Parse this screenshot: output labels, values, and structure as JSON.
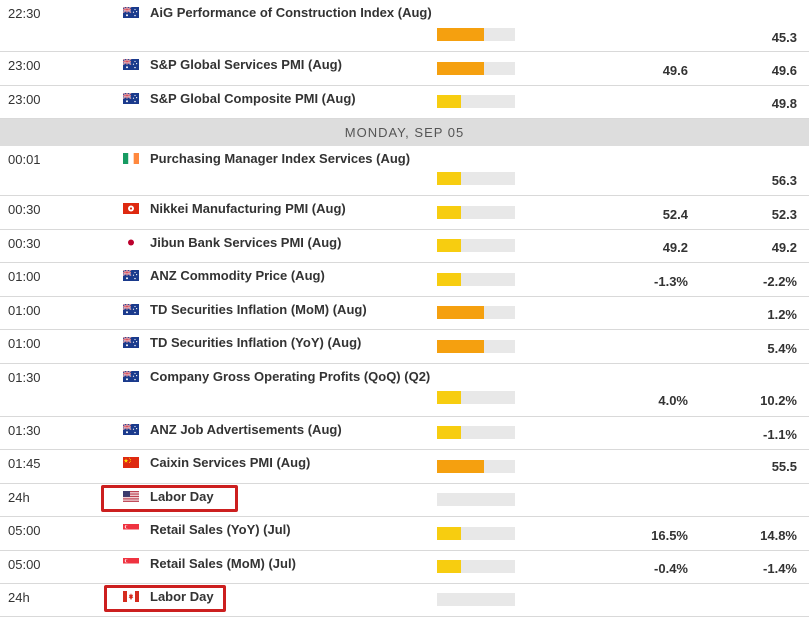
{
  "date_header": "MONDAY, SEP 05",
  "events": [
    {
      "time": "22:30",
      "flag": "australia-flag",
      "event": "AiG Performance of Construction Index (Aug)",
      "impact": "high",
      "consensus": "",
      "previous": "45.3"
    },
    {
      "time": "23:00",
      "flag": "australia-flag",
      "event": "S&P Global Services PMI (Aug)",
      "impact": "high",
      "consensus": "49.6",
      "previous": "49.6"
    },
    {
      "time": "23:00",
      "flag": "australia-flag",
      "event": "S&P Global Composite PMI (Aug)",
      "impact": "medium",
      "consensus": "",
      "previous": "49.8"
    },
    {
      "time": "00:01",
      "flag": "ireland-flag",
      "event": "Purchasing Manager Index Services (Aug)",
      "impact": "medium",
      "consensus": "",
      "previous": "56.3"
    },
    {
      "time": "00:30",
      "flag": "hong-kong-flag",
      "event": "Nikkei Manufacturing PMI (Aug)",
      "impact": "medium",
      "consensus": "52.4",
      "previous": "52.3"
    },
    {
      "time": "00:30",
      "flag": "japan-flag",
      "event": "Jibun Bank Services PMI (Aug)",
      "impact": "medium",
      "consensus": "49.2",
      "previous": "49.2"
    },
    {
      "time": "01:00",
      "flag": "australia-flag",
      "event": "ANZ Commodity Price (Aug)",
      "impact": "medium",
      "consensus": "-1.3%",
      "previous": "-2.2%"
    },
    {
      "time": "01:00",
      "flag": "australia-flag",
      "event": "TD Securities Inflation (MoM) (Aug)",
      "impact": "high",
      "consensus": "",
      "previous": "1.2%"
    },
    {
      "time": "01:00",
      "flag": "australia-flag",
      "event": "TD Securities Inflation (YoY) (Aug)",
      "impact": "high",
      "consensus": "",
      "previous": "5.4%"
    },
    {
      "time": "01:30",
      "flag": "australia-flag",
      "event": "Company Gross Operating Profits (QoQ) (Q2)",
      "impact": "medium",
      "consensus": "4.0%",
      "previous": "10.2%"
    },
    {
      "time": "01:30",
      "flag": "australia-flag",
      "event": "ANZ Job Advertisements (Aug)",
      "impact": "medium",
      "consensus": "",
      "previous": "-1.1%"
    },
    {
      "time": "01:45",
      "flag": "china-flag",
      "event": "Caixin Services PMI (Aug)",
      "impact": "high",
      "consensus": "",
      "previous": "55.5"
    },
    {
      "time": "24h",
      "flag": "usa-flag",
      "event": "Labor Day",
      "impact": "low",
      "consensus": "",
      "previous": ""
    },
    {
      "time": "05:00",
      "flag": "singapore-flag",
      "event": "Retail Sales (YoY) (Jul)",
      "impact": "medium",
      "consensus": "16.5%",
      "previous": "14.8%"
    },
    {
      "time": "05:00",
      "flag": "singapore-flag",
      "event": "Retail Sales (MoM) (Jul)",
      "impact": "medium",
      "consensus": "-0.4%",
      "previous": "-1.4%"
    },
    {
      "time": "24h",
      "flag": "canada-flag",
      "event": "Labor Day",
      "impact": "low",
      "consensus": "",
      "previous": ""
    }
  ],
  "colors": {
    "high_impact": "#f5a00f",
    "medium_impact": "#f7cd10",
    "impact_track": "#e8e8e8",
    "highlight_border": "#cc1f1f",
    "date_header_bg": "#dddddd"
  }
}
